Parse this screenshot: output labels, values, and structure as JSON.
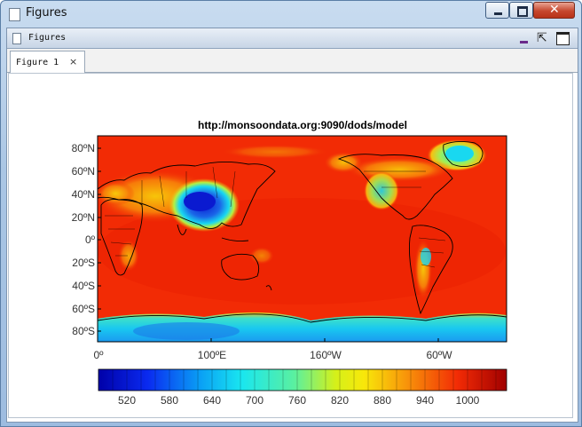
{
  "window": {
    "title": "Figures",
    "icon": "document-icon"
  },
  "dock": {
    "title": "Figures",
    "icons": [
      "minimize-icon",
      "undock-icon",
      "maximize-icon"
    ]
  },
  "tabs": [
    {
      "label": "Figure 1",
      "close": "×"
    }
  ],
  "plot": {
    "title": "http://monsoondata.org:9090/dods/model",
    "y_ticks": [
      "80ºN",
      "60ºN",
      "40ºN",
      "20ºN",
      "0º",
      "20ºS",
      "40ºS",
      "60ºS",
      "80ºS"
    ],
    "x_ticks": [
      "0º",
      "100ºE",
      "160ºW",
      "60ºW"
    ],
    "colorbar_ticks": [
      "520",
      "580",
      "640",
      "700",
      "760",
      "820",
      "880",
      "940",
      "1000"
    ],
    "colors": {
      "ocean": "#f22b05",
      "land": "#e8320a",
      "cold": "#0a1ad0",
      "cyan": "#19d8f0",
      "yellow": "#f8e00a"
    }
  }
}
